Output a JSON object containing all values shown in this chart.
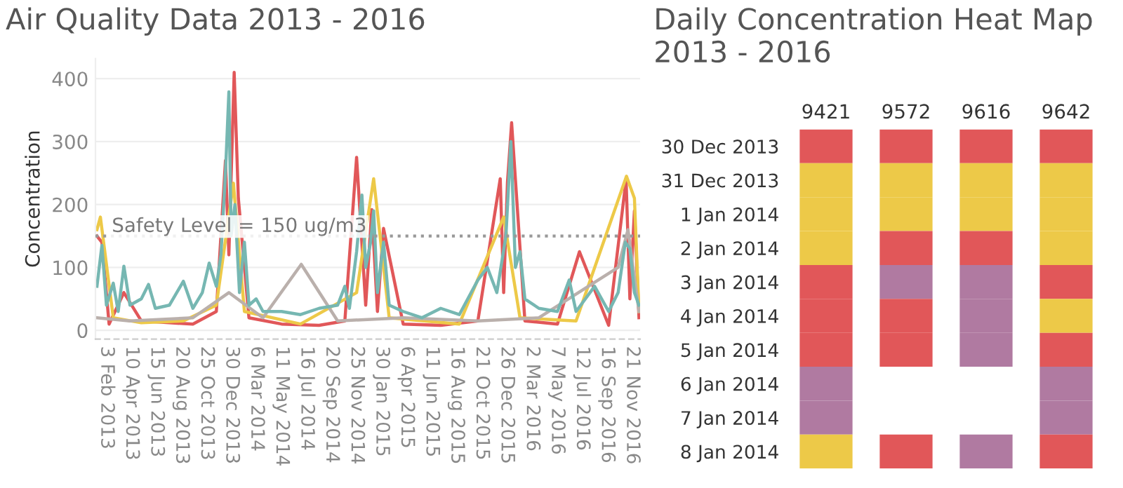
{
  "chart_data": [
    {
      "type": "line",
      "title": "Air Quality Data 2013 - 2016",
      "ylabel": "Concentration",
      "grid": "y",
      "legend": false,
      "xlim": [
        "2013-01-05",
        "2016-12-12"
      ],
      "ylim": [
        -14,
        432
      ],
      "yticks": [
        0,
        100,
        200,
        300,
        400
      ],
      "xticks": [
        {
          "value": "2013-02-03",
          "label": "3 Feb 2013"
        },
        {
          "value": "2013-04-10",
          "label": "10 Apr 2013"
        },
        {
          "value": "2013-06-15",
          "label": "15 Jun 2013"
        },
        {
          "value": "2013-08-20",
          "label": "20 Aug 2013"
        },
        {
          "value": "2013-10-25",
          "label": "25 Oct 2013"
        },
        {
          "value": "2013-12-30",
          "label": "30 Dec 2013"
        },
        {
          "value": "2014-03-06",
          "label": "6 Mar 2014"
        },
        {
          "value": "2014-05-11",
          "label": "11 May 2014"
        },
        {
          "value": "2014-07-16",
          "label": "16 Jul 2014"
        },
        {
          "value": "2014-09-20",
          "label": "20 Sep 2014"
        },
        {
          "value": "2014-11-25",
          "label": "25 Nov 2014"
        },
        {
          "value": "2015-01-30",
          "label": "30 Jan 2015"
        },
        {
          "value": "2015-04-06",
          "label": "6 Apr 2015"
        },
        {
          "value": "2015-06-11",
          "label": "11 Jun 2015"
        },
        {
          "value": "2015-08-16",
          "label": "16 Aug 2015"
        },
        {
          "value": "2015-10-21",
          "label": "21 Oct 2015"
        },
        {
          "value": "2015-12-26",
          "label": "26 Dec 2015"
        },
        {
          "value": "2016-03-02",
          "label": "2 Mar 2016"
        },
        {
          "value": "2016-05-07",
          "label": "7 May 2016"
        },
        {
          "value": "2016-07-12",
          "label": "12 Jul 2016"
        },
        {
          "value": "2016-09-16",
          "label": "16 Sep 2016"
        },
        {
          "value": "2016-11-21",
          "label": "21 Nov 2016"
        }
      ],
      "ref_lines": [
        {
          "axis": "y",
          "value": 150,
          "label": "Safety Level = 150 ug/m3",
          "color": "#999999",
          "line_style": "dotted"
        }
      ],
      "series": [
        {
          "color": "#e15759",
          "x": [
            "2013-01-09",
            "2013-01-22",
            "2013-02-10",
            "2013-03-21",
            "2013-05-06",
            "2013-07-19",
            "2013-09-19",
            "2013-11-20",
            "2013-12-14",
            "2013-12-23",
            "2014-01-06",
            "2014-01-17",
            "2014-02-14",
            "2014-05-11",
            "2014-08-18",
            "2014-10-25",
            "2014-11-25",
            "2014-12-19",
            "2015-01-04",
            "2015-01-19",
            "2015-02-04",
            "2015-03-28",
            "2015-07-05",
            "2015-10-11",
            "2015-12-09",
            "2015-12-18",
            "2015-12-28",
            "2016-01-08",
            "2016-02-12",
            "2016-05-08",
            "2016-07-05",
            "2016-09-20",
            "2016-11-05",
            "2016-11-15",
            "2016-11-27",
            "2016-12-09"
          ],
          "values": [
            150,
            140,
            10,
            60,
            15,
            12,
            10,
            30,
            270,
            120,
            410,
            210,
            20,
            10,
            8,
            15,
            275,
            40,
            192,
            30,
            162,
            10,
            8,
            15,
            241,
            60,
            235,
            330,
            15,
            10,
            125,
            8,
            240,
            50,
            190,
            20
          ]
        },
        {
          "color": "#edc948",
          "x": [
            "2013-01-09",
            "2013-01-18",
            "2013-02-21",
            "2013-05-06",
            "2013-08-25",
            "2013-11-20",
            "2014-01-04",
            "2014-02-02",
            "2014-06-30",
            "2014-11-25",
            "2015-01-09",
            "2015-02-19",
            "2015-08-23",
            "2015-12-18",
            "2016-01-30",
            "2016-06-26",
            "2016-11-06",
            "2016-11-27",
            "2016-12-09"
          ],
          "values": [
            160,
            180,
            20,
            12,
            15,
            40,
            234,
            30,
            10,
            60,
            241,
            20,
            10,
            180,
            20,
            15,
            245,
            210,
            30
          ]
        },
        {
          "color": "#bab0ac",
          "x": [
            "2013-01-09",
            "2013-04-06",
            "2013-09-19",
            "2013-12-23",
            "2014-03-23",
            "2014-07-02",
            "2014-10-06",
            "2015-03-28",
            "2015-10-11",
            "2016-03-20",
            "2016-10-15",
            "2016-11-10",
            "2016-12-09"
          ],
          "values": [
            20,
            15,
            20,
            60,
            20,
            105,
            15,
            20,
            15,
            20,
            100,
            160,
            30
          ]
        },
        {
          "color": "#76b7b2",
          "x": [
            "2013-01-09",
            "2013-01-22",
            "2013-02-03",
            "2013-02-21",
            "2013-03-06",
            "2013-03-21",
            "2013-04-06",
            "2013-05-06",
            "2013-05-25",
            "2013-06-12",
            "2013-07-19",
            "2013-08-25",
            "2013-09-19",
            "2013-10-14",
            "2013-11-01",
            "2013-11-20",
            "2013-12-02",
            "2013-12-14",
            "2013-12-23",
            "2013-12-29",
            "2014-01-08",
            "2014-01-20",
            "2014-02-02",
            "2014-02-14",
            "2014-03-05",
            "2014-03-23",
            "2014-05-11",
            "2014-06-30",
            "2014-08-18",
            "2014-10-06",
            "2014-10-25",
            "2014-11-06",
            "2014-11-25",
            "2014-12-09",
            "2014-12-19",
            "2015-01-01",
            "2015-01-09",
            "2015-01-19",
            "2015-02-04",
            "2015-02-19",
            "2015-03-28",
            "2015-05-16",
            "2015-07-05",
            "2015-08-23",
            "2015-10-11",
            "2015-11-05",
            "2015-11-30",
            "2015-12-24",
            "2016-01-06",
            "2016-01-18",
            "2016-01-30",
            "2016-02-12",
            "2016-03-20",
            "2016-05-08",
            "2016-06-08",
            "2016-06-26",
            "2016-08-14",
            "2016-09-20",
            "2016-10-15",
            "2016-11-03",
            "2016-11-15",
            "2016-11-27",
            "2016-12-09"
          ],
          "values": [
            70,
            135,
            40,
            75,
            30,
            102,
            40,
            50,
            73,
            35,
            40,
            78,
            35,
            60,
            107,
            70,
            120,
            250,
            379,
            150,
            200,
            60,
            140,
            40,
            50,
            30,
            30,
            25,
            35,
            40,
            70,
            35,
            125,
            215,
            100,
            140,
            190,
            60,
            140,
            40,
            30,
            20,
            35,
            25,
            80,
            100,
            60,
            150,
            300,
            100,
            125,
            50,
            35,
            30,
            80,
            30,
            70,
            30,
            60,
            140,
            130,
            60,
            40
          ]
        }
      ]
    },
    {
      "type": "other",
      "title": "Daily Concentration Heat Map\n2013 - 2016",
      "categories": [
        "9421",
        "9572",
        "9616",
        "9642"
      ],
      "y_categories": [
        "30 Dec 2013",
        "31 Dec 2013",
        "1 Jan 2014",
        "2 Jan 2014",
        "3 Jan 2014",
        "4 Jan 2014",
        "5 Jan 2014",
        "6 Jan 2014",
        "7 Jan 2014",
        "8 Jan 2014"
      ],
      "colors": [
        [
          "#e15759",
          "#e15759",
          "#e15759",
          "#e15759"
        ],
        [
          "#edc948",
          "#edc948",
          "#edc948",
          "#edc948"
        ],
        [
          "#edc948",
          "#edc948",
          "#edc948",
          "#edc948"
        ],
        [
          "#edc948",
          "#e15759",
          "#e15759",
          "#edc948"
        ],
        [
          "#e15759",
          "#b07aa1",
          "#b07aa1",
          "#e15759"
        ],
        [
          "#e15759",
          "#e15759",
          "#b07aa1",
          "#edc948"
        ],
        [
          "#e15759",
          "#e15759",
          "#b07aa1",
          "#e15759"
        ],
        [
          "#b07aa1",
          null,
          null,
          "#b07aa1"
        ],
        [
          "#b07aa1",
          null,
          null,
          "#b07aa1"
        ],
        [
          "#edc948",
          "#e15759",
          "#b07aa1",
          "#e15759"
        ]
      ]
    }
  ]
}
